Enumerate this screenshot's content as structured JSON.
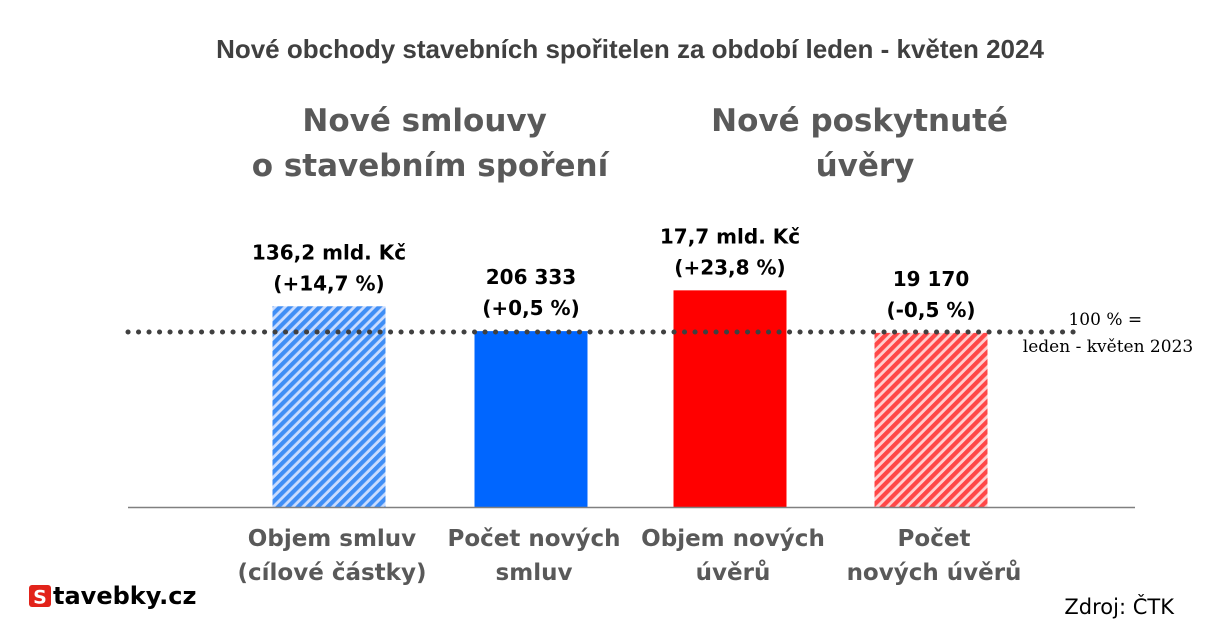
{
  "chart_data": {
    "type": "bar",
    "title": "Nové obchody stavebních spořitelen za období leden - květen 2024",
    "groups": [
      {
        "lines": [
          "Nové smlouvy",
          "o stavebním spoření"
        ]
      },
      {
        "lines": [
          "Nové poskytnuté",
          "úvěry"
        ]
      }
    ],
    "categories": [
      [
        "Objem smluv",
        "(cílové částky)"
      ],
      [
        "Počet  nových",
        "smluv"
      ],
      [
        "Objem nových",
        "úvěrů"
      ],
      [
        "Počet",
        "nových úvěrů"
      ]
    ],
    "values_pct_of_2023": [
      114.7,
      100.5,
      123.8,
      99.5
    ],
    "data_labels": [
      [
        "136,2 mld. Kč",
        "(+14,7 %)"
      ],
      [
        "206 333",
        "(+0,5 %)"
      ],
      [
        "17,7 mld. Kč",
        "(+23,8 %)"
      ],
      [
        "19 170",
        "(-0,5 %)"
      ]
    ],
    "bar_colors": [
      "#3f8ef5",
      "#0066ff",
      "#ff0000",
      "#ff4747"
    ],
    "bar_patterns": [
      "hatch",
      "solid",
      "solid",
      "hatch"
    ],
    "reference": {
      "value": 100,
      "lines": [
        "100 % =",
        "leden - květen 2023"
      ]
    },
    "grid": false
  },
  "logo": {
    "initial": "S",
    "rest": "tavebky.cz",
    "badge_color": "#e2231a"
  },
  "source": "Zdroj: ČTK"
}
